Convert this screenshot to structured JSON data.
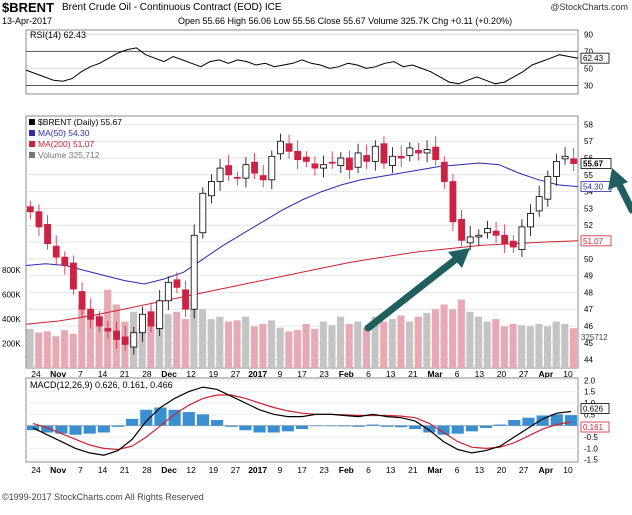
{
  "header": {
    "symbol": "$BRENT",
    "name": "Brent Crude Oil - Continuous Contract (EOD)  ICE",
    "date": "13-Apr-2017",
    "stats": "Open 55.66  High 56.06  Low 55.56  Close 55.67  Volume 325.7K  Chg +0.11 (+0.20%)",
    "credit": "@StockCharts.com"
  },
  "footer": "©1999-2017 StockCharts.com All Rights Reserved",
  "colors": {
    "up": "#9a9a9a",
    "down": "#cc2244",
    "ma50": "#2a2ab0",
    "ma200": "#cc2233",
    "macd_line": "#000000",
    "signal": "#cc2233",
    "histogram": "#3a8fd0",
    "arrow": "#1f5f5f"
  },
  "chart_data": [
    {
      "type": "line",
      "panel": "rsi",
      "title": "RSI(14) 62.43",
      "ylim": [
        20,
        95
      ],
      "ticks": [
        "90",
        "70",
        "50",
        "30"
      ],
      "last_label": "62.43",
      "values": [
        48,
        44,
        40,
        36,
        35,
        38,
        46,
        52,
        56,
        62,
        68,
        72,
        74,
        66,
        62,
        58,
        64,
        60,
        56,
        52,
        58,
        60,
        56,
        60,
        58,
        54,
        56,
        52,
        54,
        56,
        60,
        56,
        54,
        50,
        52,
        56,
        54,
        50,
        52,
        56,
        58,
        52,
        54,
        50,
        46,
        40,
        34,
        32,
        36,
        40,
        36,
        32,
        34,
        40,
        46,
        54,
        58,
        62,
        66,
        64,
        62
      ]
    },
    {
      "type": "candlestick",
      "panel": "price",
      "legend": [
        "$BRENT (Daily) 55.67",
        "MA(50) 54.30",
        "MA(200) 51.07",
        "Volume 325,712"
      ],
      "ylim": [
        43.5,
        58.5
      ],
      "yticks": [
        "58",
        "57",
        "56",
        "55",
        "54",
        "53",
        "52",
        "51",
        "50",
        "49",
        "48",
        "47",
        "46",
        "45",
        "44"
      ],
      "price_labels": [
        "55.67",
        "54.30",
        "51.07",
        "325712"
      ],
      "volume_ticks": [
        "800K",
        "600K",
        "400K",
        "200K"
      ],
      "x_labels": [
        "24",
        "Nov",
        "7",
        "14",
        "21",
        "28",
        "Dec",
        "12",
        "19",
        "27",
        "2017",
        "9",
        "17",
        "23",
        "Feb",
        "6",
        "13",
        "21",
        "Mar",
        "6",
        "13",
        "20",
        "27",
        "Apr",
        "10"
      ],
      "close": [
        52.8,
        51.9,
        50.9,
        50.1,
        49.6,
        48.2,
        47.0,
        46.4,
        46.0,
        45.7,
        45.2,
        44.9,
        45.6,
        46.7,
        46.0,
        47.5,
        48.6,
        48.3,
        47.0,
        51.4,
        53.9,
        54.6,
        55.4,
        55.0,
        54.8,
        55.6,
        55.1,
        54.7,
        56.1,
        57.0,
        56.4,
        55.9,
        55.8,
        55.4,
        55.6,
        55.7,
        56.0,
        55.3,
        56.3,
        55.8,
        56.7,
        55.7,
        56.1,
        56.0,
        56.6,
        56.3,
        56.5,
        55.9,
        54.6,
        52.2,
        51.1,
        51.3,
        51.4,
        51.8,
        51.4,
        50.9,
        50.7,
        51.9,
        52.7,
        53.7,
        54.9,
        55.8,
        56.1,
        55.67
      ],
      "ma50": [
        49.6,
        49.7,
        49.6,
        49.3,
        49.0,
        48.7,
        48.5,
        48.8,
        49.2,
        50.0,
        50.8,
        51.5,
        52.2,
        52.9,
        53.5,
        54.0,
        54.4,
        54.7,
        54.9,
        55.1,
        55.3,
        55.5,
        55.6,
        55.7,
        55.6,
        55.1,
        54.7,
        54.4,
        54.3
      ],
      "ma200": [
        46.1,
        46.3,
        46.6,
        47.0,
        47.4,
        47.8,
        48.2,
        48.6,
        49.0,
        49.4,
        49.8,
        50.1,
        50.4,
        50.6,
        50.8,
        50.9,
        51.0,
        51.07
      ],
      "volume": [
        320,
        290,
        300,
        260,
        310,
        280,
        520,
        480,
        430,
        640,
        520,
        380,
        460,
        330,
        420,
        360,
        440,
        460,
        400,
        560,
        480,
        400,
        420,
        380,
        390,
        420,
        340,
        360,
        390,
        330,
        300,
        310,
        360,
        320,
        380,
        350,
        420,
        360,
        380,
        330,
        420,
        380,
        400,
        430,
        380,
        420,
        450,
        480,
        520,
        480,
        560,
        460,
        420,
        380,
        400,
        340,
        360,
        350,
        340,
        360,
        340,
        380,
        360,
        326
      ]
    },
    {
      "type": "line",
      "panel": "macd",
      "title": "MACD(12,26,9) 0.626, 0.161, 0.466",
      "ylim": [
        -1.6,
        2.1
      ],
      "yticks": [
        "2.0",
        "1.5",
        "1.0",
        "0.5",
        "0.0",
        "-0.5",
        "-1.0",
        "-1.5"
      ],
      "value_labels": [
        "0.626",
        "0.161"
      ],
      "x_labels": [
        "24",
        "Nov",
        "7",
        "14",
        "21",
        "28",
        "Dec",
        "12",
        "19",
        "27",
        "2017",
        "9",
        "17",
        "23",
        "Feb",
        "6",
        "13",
        "21",
        "Mar",
        "6",
        "13",
        "20",
        "27",
        "Apr",
        "10"
      ],
      "macd": [
        -0.1,
        -0.4,
        -0.7,
        -1.0,
        -1.2,
        -1.3,
        -1.1,
        -0.6,
        0.2,
        0.8,
        1.2,
        1.5,
        1.7,
        1.6,
        1.3,
        1.0,
        0.7,
        0.5,
        0.4,
        0.4,
        0.5,
        0.5,
        0.45,
        0.4,
        0.5,
        0.4,
        0.35,
        0.2,
        -0.2,
        -0.7,
        -1.05,
        -1.2,
        -1.1,
        -0.9,
        -0.5,
        -0.1,
        0.3,
        0.55,
        0.626
      ],
      "signal": [
        0.1,
        -0.1,
        -0.35,
        -0.6,
        -0.85,
        -1.0,
        -1.05,
        -0.9,
        -0.5,
        0.0,
        0.5,
        0.9,
        1.2,
        1.35,
        1.35,
        1.2,
        1.0,
        0.8,
        0.65,
        0.55,
        0.5,
        0.5,
        0.48,
        0.45,
        0.45,
        0.45,
        0.42,
        0.35,
        0.1,
        -0.3,
        -0.7,
        -0.95,
        -1.0,
        -0.95,
        -0.75,
        -0.45,
        -0.15,
        0.05,
        0.161
      ]
    }
  ]
}
